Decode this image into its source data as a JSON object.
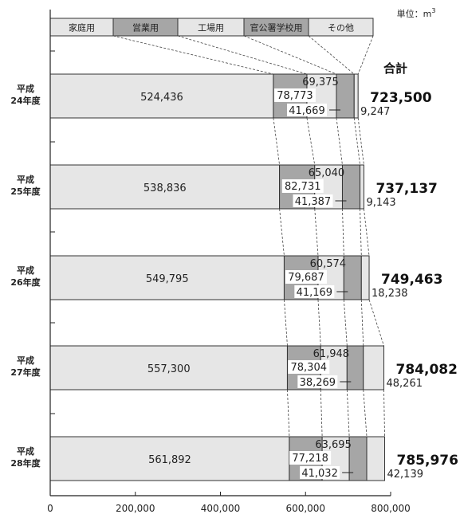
{
  "chart_data": {
    "type": "bar",
    "orientation": "horizontal",
    "stacked": true,
    "unit": "単位：m",
    "unit_superscript": "3",
    "total_heading": "合計",
    "xlim": [
      0,
      800000
    ],
    "xticks": [
      "0",
      "200,000",
      "400,000",
      "600,000",
      "800,000"
    ],
    "xtick_values": [
      0,
      200000,
      400000,
      600000,
      800000
    ],
    "legend_position": "top",
    "series": [
      {
        "name": "家庭用",
        "color": "#e6e6e6",
        "values": [
          524436,
          538836,
          549795,
          557300,
          561892
        ]
      },
      {
        "name": "営業用",
        "color": "#a6a6a6",
        "values": [
          78773,
          82731,
          79687,
          78304,
          77218
        ]
      },
      {
        "name": "工場用",
        "color": "#e6e6e6",
        "values": [
          69375,
          65040,
          60574,
          61948,
          63695
        ]
      },
      {
        "name": "官公署学校用",
        "color": "#a6a6a6",
        "values": [
          41669,
          41387,
          41169,
          38269,
          41032
        ]
      },
      {
        "name": "その他",
        "color": "#e6e6e6",
        "values": [
          9247,
          9143,
          18238,
          48261,
          42139
        ]
      }
    ],
    "categories": [
      {
        "line1": "平成",
        "line2": "24年度"
      },
      {
        "line1": "平成",
        "line2": "25年度"
      },
      {
        "line1": "平成",
        "line2": "26年度"
      },
      {
        "line1": "平成",
        "line2": "27年度"
      },
      {
        "line1": "平成",
        "line2": "28年度"
      }
    ],
    "labels": [
      {
        "domestic": "524,436",
        "commercial": "78,773",
        "factory": "69,375",
        "public": "41,669",
        "other": "9,247",
        "total": "723,500"
      },
      {
        "domestic": "538,836",
        "commercial": "82,731",
        "factory": "65,040",
        "public": "41,387",
        "other": "9,143",
        "total": "737,137"
      },
      {
        "domestic": "549,795",
        "commercial": "79,687",
        "factory": "60,574",
        "public": "41,169",
        "other": "18,238",
        "total": "749,463"
      },
      {
        "domestic": "557,300",
        "commercial": "78,304",
        "factory": "61,948",
        "public": "38,269",
        "other": "48,261",
        "total": "784,082"
      },
      {
        "domestic": "561,892",
        "commercial": "77,218",
        "factory": "63,695",
        "public": "41,032",
        "other": "42,139",
        "total": "785,976"
      }
    ]
  }
}
